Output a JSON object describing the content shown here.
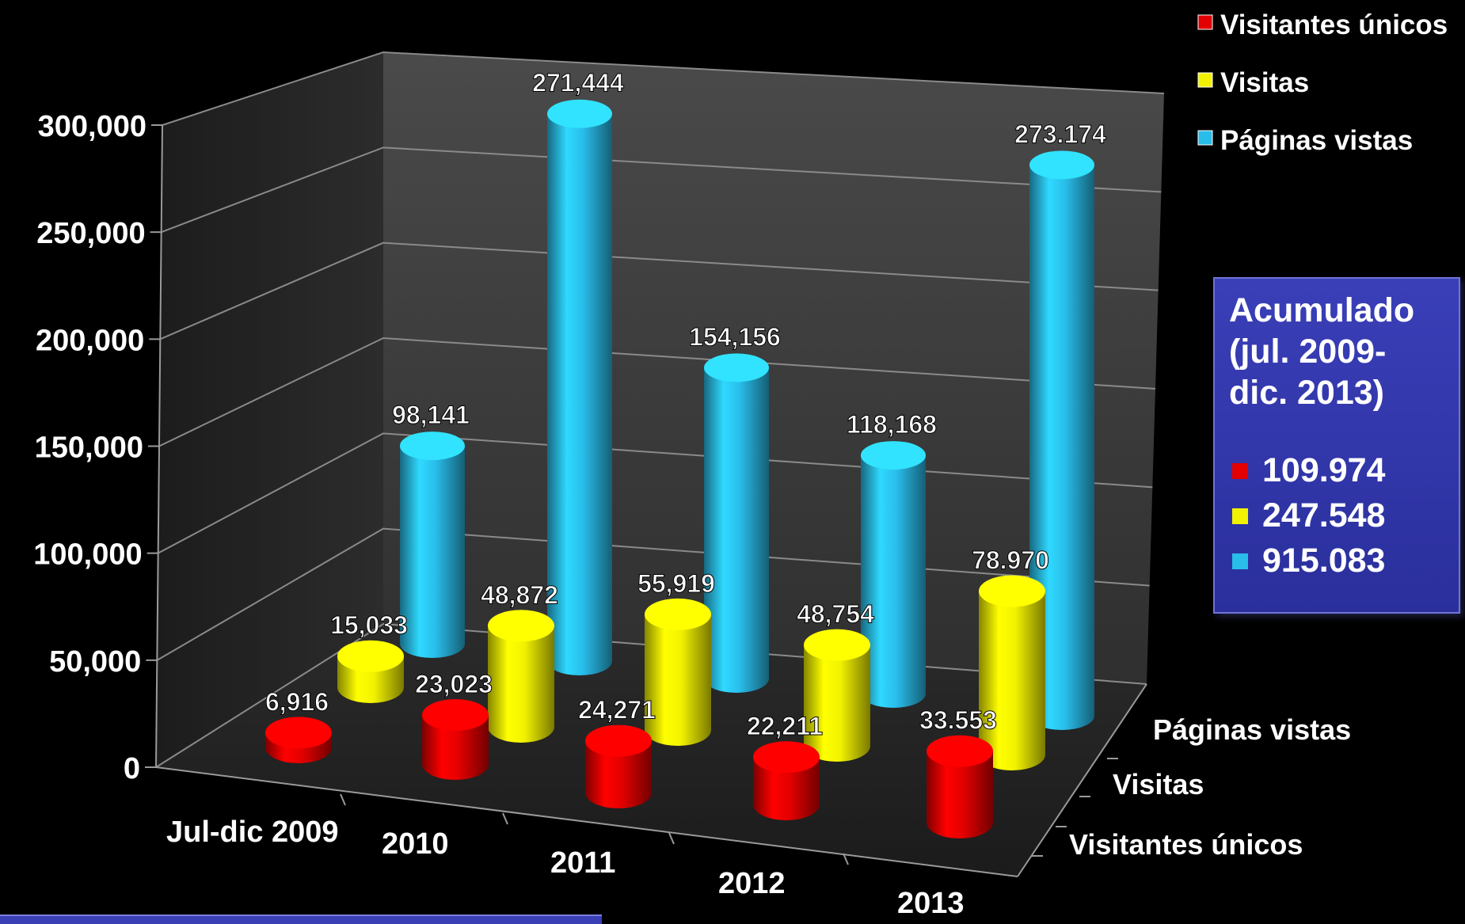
{
  "chart_data": {
    "type": "bar",
    "style": "3d-cylinder",
    "categories": [
      "Jul-dic 2009",
      "2010",
      "2011",
      "2012",
      "2013"
    ],
    "depth_labels": [
      "Páginas vistas",
      "Visitas",
      "Visitantes únicos"
    ],
    "series": [
      {
        "name": "Visitantes únicos",
        "color": "#e30000",
        "values": [
          6916,
          23023,
          24271,
          22211,
          33553
        ],
        "labels": [
          "6,916",
          "23,023",
          "24,271",
          "22,211",
          "33.553"
        ]
      },
      {
        "name": "Visitas",
        "color": "#f2f200",
        "values": [
          15033,
          48872,
          55919,
          48754,
          78970
        ],
        "labels": [
          "15,033",
          "48,872",
          "55,919",
          "48,754",
          "78.970"
        ]
      },
      {
        "name": "Páginas vistas",
        "color": "#29bdea",
        "values": [
          98141,
          271444,
          154156,
          118168,
          273174
        ],
        "labels": [
          "98,141",
          "271,444",
          "154,156",
          "118,168",
          "273.174"
        ]
      }
    ],
    "ylim": [
      0,
      300000
    ],
    "yticks": [
      0,
      50000,
      100000,
      150000,
      200000,
      250000,
      300000
    ],
    "ytick_labels": [
      "0",
      "50,000",
      "100,000",
      "150,000",
      "200,000",
      "250,000",
      "300,000"
    ],
    "grid": true,
    "legend_position": "top-right"
  },
  "summary": {
    "title": "Acumulado\n(jul. 2009-\ndic. 2013)",
    "items": [
      {
        "value": "109.974",
        "color": "#e30000"
      },
      {
        "value": "247.548",
        "color": "#f2f200"
      },
      {
        "value": "915.083",
        "color": "#29bdea"
      }
    ]
  }
}
